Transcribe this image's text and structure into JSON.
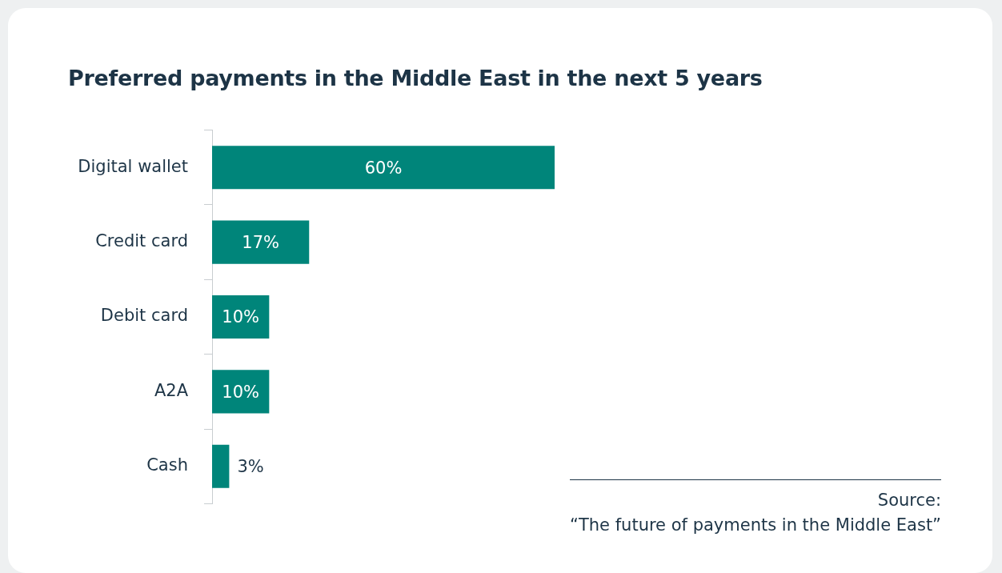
{
  "chart_data": {
    "type": "bar",
    "orientation": "horizontal",
    "title": "Preferred payments in the Middle East in the next 5 years",
    "categories": [
      "Digital wallet",
      "Credit card",
      "Debit card",
      "A2A",
      "Cash"
    ],
    "values": [
      60,
      17,
      10,
      10,
      3
    ],
    "value_labels": [
      "60%",
      "17%",
      "10%",
      "10%",
      "3%"
    ],
    "color": "#00857a",
    "annotations": [
      "Source:",
      "“The future of payments in the Middle East”"
    ]
  }
}
